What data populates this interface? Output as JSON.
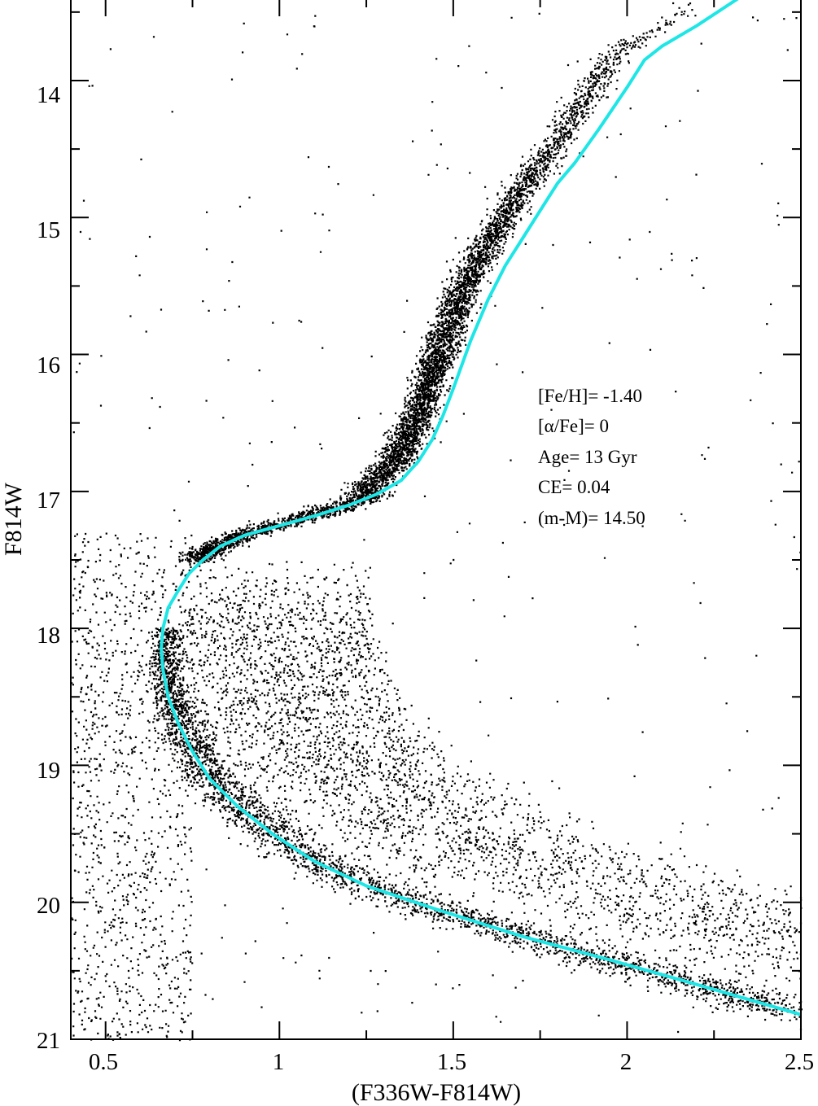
{
  "chart_data": {
    "type": "scatter",
    "title": "",
    "xlabel": "(F336W-F814W)",
    "ylabel": "F814W",
    "xlim": [
      0.4,
      2.5
    ],
    "ylim": [
      21,
      13.4
    ],
    "y_inverted": true,
    "grid": false,
    "x_ticks": [
      0.5,
      1,
      1.5,
      2,
      2.5
    ],
    "x_tick_labels": [
      "0.5",
      "1",
      "1.5",
      "2",
      "2.5"
    ],
    "y_ticks": [
      14,
      15,
      16,
      17,
      18,
      19,
      20,
      21
    ],
    "y_tick_labels": [
      "14",
      "15",
      "16",
      "17",
      "18",
      "19",
      "20",
      "21"
    ],
    "annotations": [
      "[Fe/H]= -1.40",
      "[α/Fe]= 0",
      "Age= 13 Gyr",
      "CE= 0.04",
      "(m-M)= 14.50"
    ],
    "colors": {
      "points": "#000000",
      "isochrone": "#1ee6e6"
    },
    "series": [
      {
        "type": "line",
        "x": [
          2.32,
          2.2,
          2.1,
          2.05,
          2.0,
          1.92,
          1.85,
          1.8,
          1.75,
          1.7,
          1.65,
          1.6,
          1.55,
          1.5,
          1.47,
          1.44,
          1.4,
          1.35,
          1.28,
          1.2,
          1.1,
          1.0,
          0.9,
          0.83,
          0.78,
          0.74,
          0.71,
          0.68,
          0.665,
          0.66,
          0.665,
          0.68,
          0.71,
          0.75,
          0.8,
          0.88,
          0.98,
          1.1,
          1.25,
          1.45,
          1.7,
          1.95,
          2.2,
          2.5
        ],
        "y": [
          13.4,
          13.6,
          13.75,
          13.85,
          14.05,
          14.35,
          14.6,
          14.75,
          14.95,
          15.15,
          15.35,
          15.6,
          15.9,
          16.25,
          16.45,
          16.62,
          16.78,
          16.92,
          17.02,
          17.1,
          17.18,
          17.25,
          17.32,
          17.4,
          17.5,
          17.6,
          17.72,
          17.85,
          18.0,
          18.15,
          18.3,
          18.5,
          18.7,
          18.9,
          19.1,
          19.3,
          19.5,
          19.7,
          19.88,
          20.05,
          20.25,
          20.42,
          20.6,
          20.82
        ]
      }
    ]
  }
}
